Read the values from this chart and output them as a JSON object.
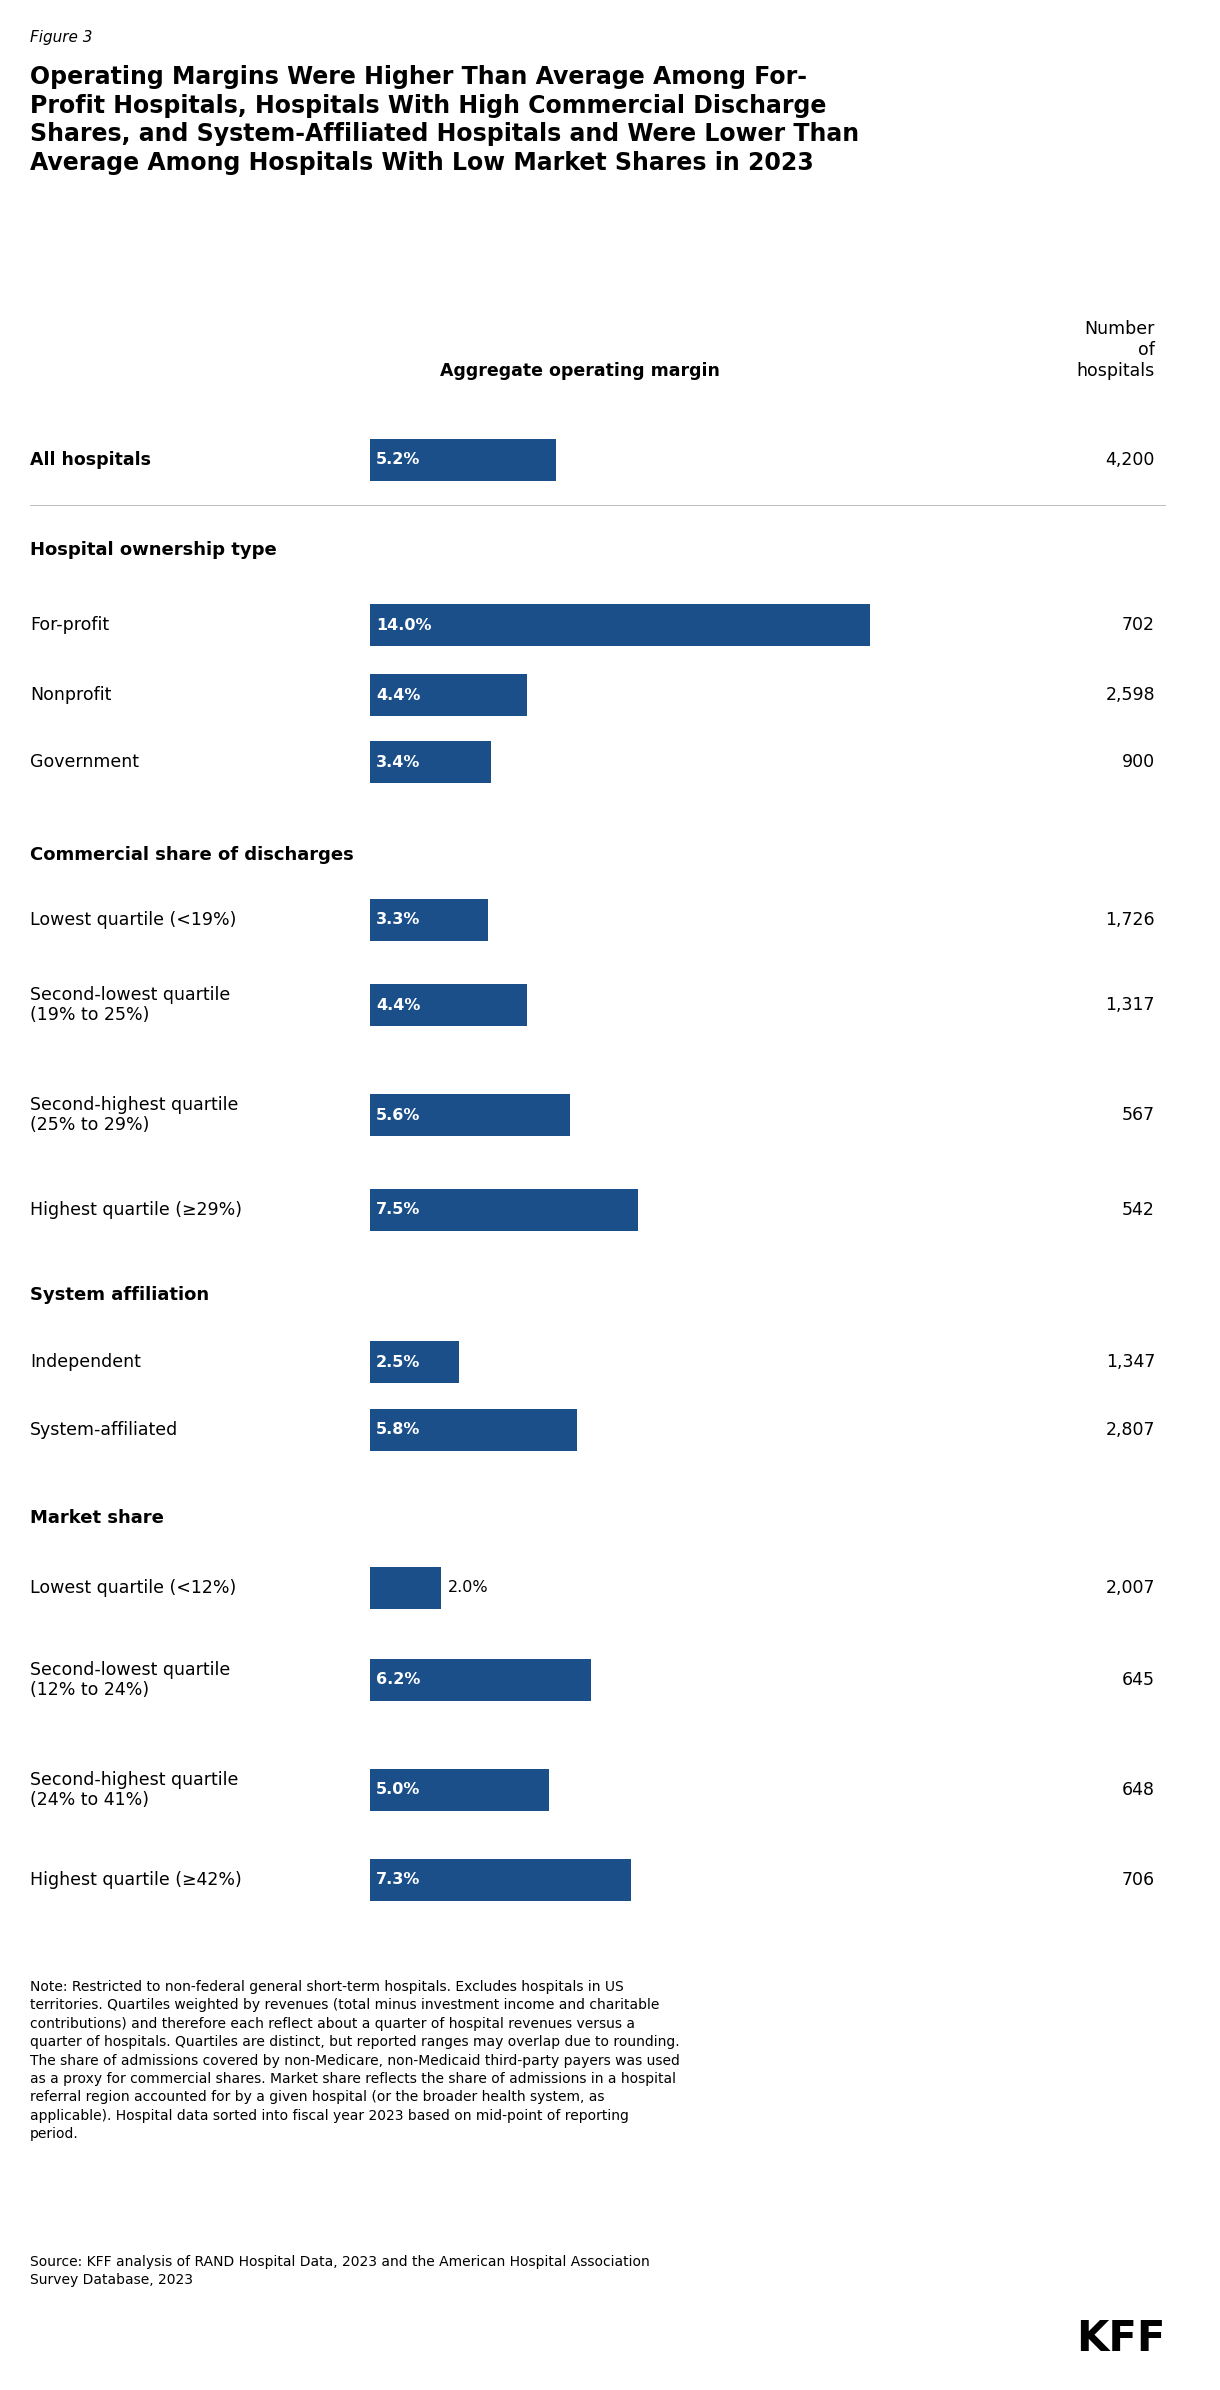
{
  "figure_label": "Figure 3",
  "title": "Operating Margins Were Higher Than Average Among For-\nProfit Hospitals, Hospitals With High Commercial Discharge\nShares, and System-Affiliated Hospitals and Were Lower Than\nAverage Among Hospitals With Low Market Shares in 2023",
  "col_header_margin": "Aggregate operating margin",
  "col_header_hospitals": "Number\nof\nhospitals",
  "bar_color": "#1a4f8a",
  "rows": [
    {
      "label": "All hospitals",
      "value": 5.2,
      "label_text": "5.2%",
      "count": "4,200",
      "is_section": false,
      "section_label": null,
      "is_bold_label": true,
      "label_in_bar": true
    },
    {
      "label": null,
      "value": null,
      "label_text": null,
      "count": null,
      "is_section": true,
      "section_label": "Hospital ownership type",
      "is_bold_label": false,
      "label_in_bar": false
    },
    {
      "label": "For-profit",
      "value": 14.0,
      "label_text": "14.0%",
      "count": "702",
      "is_section": false,
      "section_label": null,
      "is_bold_label": false,
      "label_in_bar": true
    },
    {
      "label": "Nonprofit",
      "value": 4.4,
      "label_text": "4.4%",
      "count": "2,598",
      "is_section": false,
      "section_label": null,
      "is_bold_label": false,
      "label_in_bar": true
    },
    {
      "label": "Government",
      "value": 3.4,
      "label_text": "3.4%",
      "count": "900",
      "is_section": false,
      "section_label": null,
      "is_bold_label": false,
      "label_in_bar": true
    },
    {
      "label": null,
      "value": null,
      "label_text": null,
      "count": null,
      "is_section": true,
      "section_label": "Commercial share of discharges",
      "is_bold_label": false,
      "label_in_bar": false
    },
    {
      "label": "Lowest quartile (<19%)",
      "value": 3.3,
      "label_text": "3.3%",
      "count": "1,726",
      "is_section": false,
      "section_label": null,
      "is_bold_label": false,
      "label_in_bar": true
    },
    {
      "label": "Second-lowest quartile\n(19% to 25%)",
      "value": 4.4,
      "label_text": "4.4%",
      "count": "1,317",
      "is_section": false,
      "section_label": null,
      "is_bold_label": false,
      "label_in_bar": true
    },
    {
      "label": "Second-highest quartile\n(25% to 29%)",
      "value": 5.6,
      "label_text": "5.6%",
      "count": "567",
      "is_section": false,
      "section_label": null,
      "is_bold_label": false,
      "label_in_bar": true
    },
    {
      "label": "Highest quartile (≥29%)",
      "value": 7.5,
      "label_text": "7.5%",
      "count": "542",
      "is_section": false,
      "section_label": null,
      "is_bold_label": false,
      "label_in_bar": true
    },
    {
      "label": null,
      "value": null,
      "label_text": null,
      "count": null,
      "is_section": true,
      "section_label": "System affiliation",
      "is_bold_label": false,
      "label_in_bar": false
    },
    {
      "label": "Independent",
      "value": 2.5,
      "label_text": "2.5%",
      "count": "1,347",
      "is_section": false,
      "section_label": null,
      "is_bold_label": false,
      "label_in_bar": true
    },
    {
      "label": "System-affiliated",
      "value": 5.8,
      "label_text": "5.8%",
      "count": "2,807",
      "is_section": false,
      "section_label": null,
      "is_bold_label": false,
      "label_in_bar": true
    },
    {
      "label": null,
      "value": null,
      "label_text": null,
      "count": null,
      "is_section": true,
      "section_label": "Market share",
      "is_bold_label": false,
      "label_in_bar": false
    },
    {
      "label": "Lowest quartile (<12%)",
      "value": 2.0,
      "label_text": "2.0%",
      "count": "2,007",
      "is_section": false,
      "section_label": null,
      "is_bold_label": false,
      "label_in_bar": false
    },
    {
      "label": "Second-lowest quartile\n(12% to 24%)",
      "value": 6.2,
      "label_text": "6.2%",
      "count": "645",
      "is_section": false,
      "section_label": null,
      "is_bold_label": false,
      "label_in_bar": true
    },
    {
      "label": "Second-highest quartile\n(24% to 41%)",
      "value": 5.0,
      "label_text": "5.0%",
      "count": "648",
      "is_section": false,
      "section_label": null,
      "is_bold_label": false,
      "label_in_bar": true
    },
    {
      "label": "Highest quartile (≥42%)",
      "value": 7.3,
      "label_text": "7.3%",
      "count": "706",
      "is_section": false,
      "section_label": null,
      "is_bold_label": false,
      "label_in_bar": true
    }
  ],
  "note_text": "Note: Restricted to non-federal general short-term hospitals. Excludes hospitals in US\nterritories. Quartiles weighted by revenues (total minus investment income and charitable\ncontributions) and therefore each reflect about a quarter of hospital revenues versus a\nquarter of hospitals. Quartiles are distinct, but reported ranges may overlap due to rounding.\nThe share of admissions covered by non-Medicare, non-Medicaid third-party payers was used\nas a proxy for commercial shares. Market share reflects the share of admissions in a hospital\nreferral region accounted for by a given hospital (or the broader health system, as\napplicable). Hospital data sorted into fiscal year 2023 based on mid-point of reporting\nperiod.",
  "source_text": "Source: KFF analysis of RAND Hospital Data, 2023 and the American Hospital Association\nSurvey Database, 2023",
  "kff_logo": "KFF",
  "max_bar_value": 14.0
}
